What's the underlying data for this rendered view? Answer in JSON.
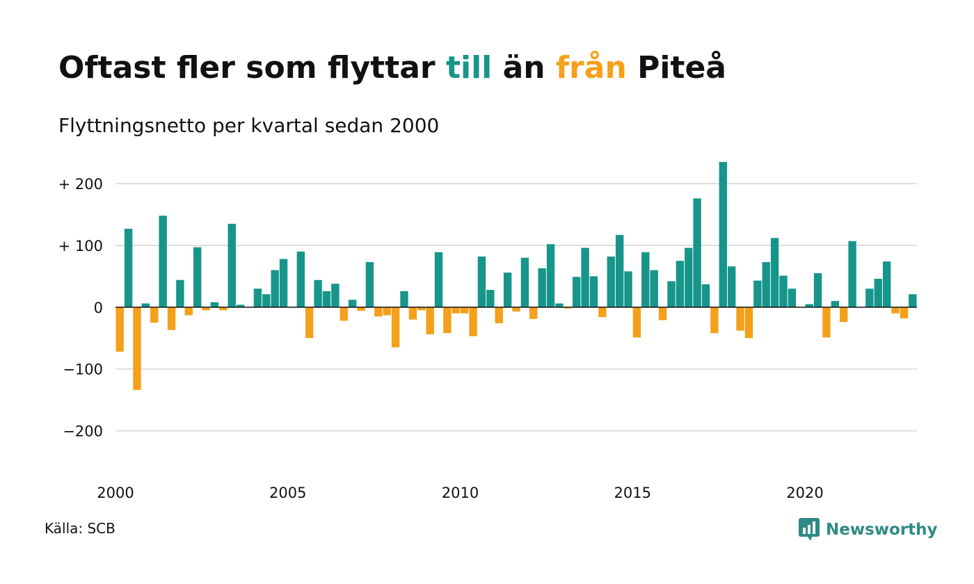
{
  "header": {
    "title_pre": "Oftast fler som flyttar",
    "title_pos": "till",
    "title_mid": "än",
    "title_neg": "från",
    "title_post": "Piteå",
    "subtitle": "Flyttningsnetto per kvartal sedan 2000"
  },
  "footer": {
    "source": "Källa: SCB",
    "brand": "Newsworthy",
    "brand_icon": "newsworthy-chart-bubble-icon"
  },
  "colors": {
    "positive": "#17958a",
    "negative": "#f5a01a",
    "brand": "#2e8a86",
    "grid": "#dddddd",
    "zero_line": "#111111"
  },
  "chart_data": {
    "type": "bar",
    "x_start": "2000 Q1",
    "x_ticks": [
      "2000",
      "2005",
      "2010",
      "2015",
      "2020"
    ],
    "y_ticks": [
      {
        "value": 200,
        "label": "+ 200"
      },
      {
        "value": 100,
        "label": "+ 100"
      },
      {
        "value": 0,
        "label": "0"
      },
      {
        "value": -100,
        "label": "−100"
      },
      {
        "value": -200,
        "label": "−200"
      }
    ],
    "ylim": [
      -250,
      235
    ],
    "grid": true,
    "legend": "none",
    "values": [
      -72,
      127,
      -134,
      6,
      -25,
      148,
      -37,
      44,
      -13,
      97,
      -5,
      8,
      -5,
      135,
      4,
      0,
      30,
      21,
      60,
      78,
      0,
      90,
      -50,
      44,
      26,
      38,
      -22,
      12,
      -6,
      73,
      -15,
      -13,
      -65,
      26,
      -20,
      -5,
      -44,
      89,
      -42,
      -10,
      -10,
      -47,
      82,
      28,
      -26,
      56,
      -7,
      80,
      -19,
      63,
      102,
      6,
      -2,
      49,
      96,
      50,
      -16,
      82,
      117,
      58,
      -49,
      89,
      60,
      -21,
      42,
      75,
      96,
      176,
      37,
      -42,
      235,
      66,
      -38,
      -50,
      43,
      73,
      112,
      51,
      30,
      0,
      5,
      55,
      -49,
      10,
      -24,
      107,
      0,
      30,
      46,
      74,
      -10,
      -18,
      21
    ]
  }
}
